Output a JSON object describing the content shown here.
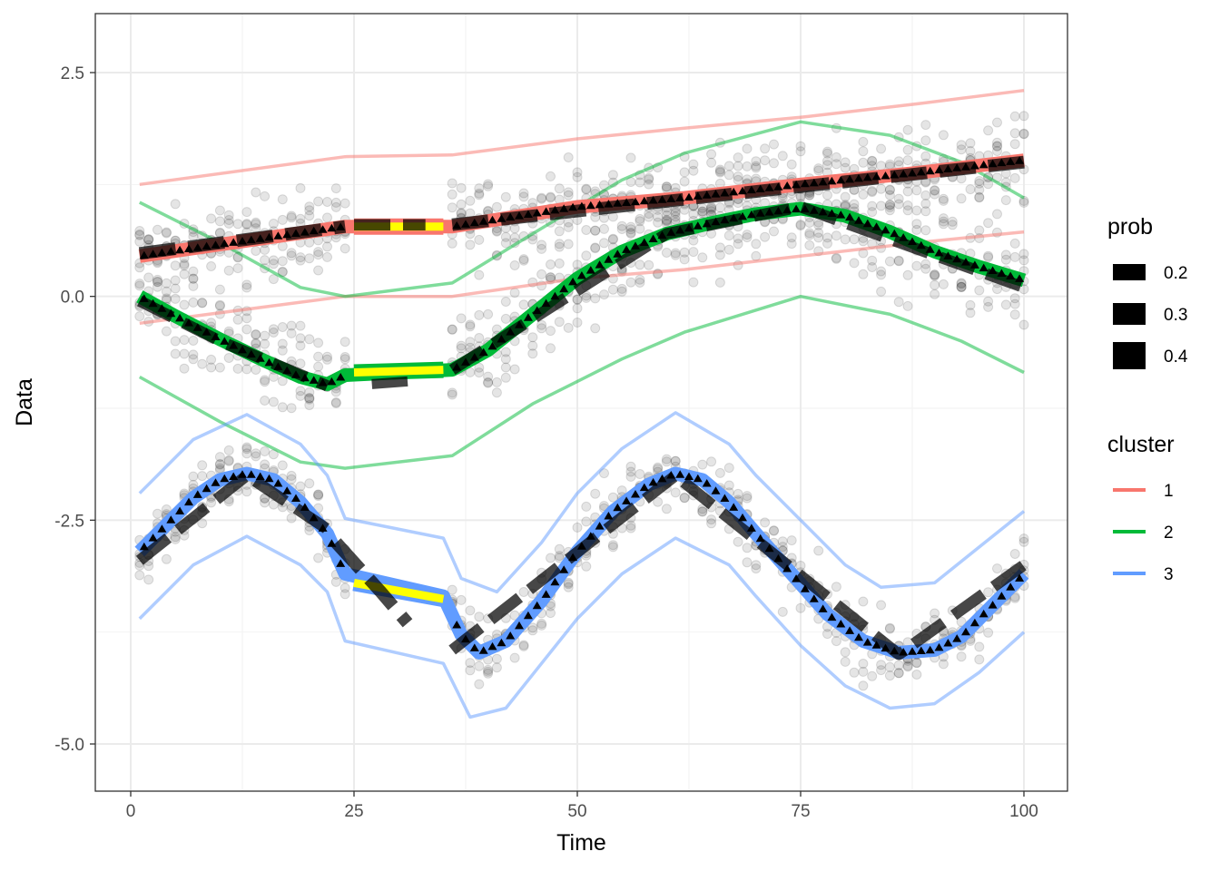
{
  "chart_data": {
    "type": "line",
    "xlabel": "Time",
    "ylabel": "Data",
    "xlim": [
      0,
      100
    ],
    "ylim": [
      -5.5,
      3.2
    ],
    "x_ticks": [
      0,
      25,
      50,
      75,
      100
    ],
    "y_ticks": [
      2.5,
      0.0,
      -2.5,
      -5.0
    ],
    "x_tick_labels": [
      "0",
      "25",
      "50",
      "75",
      "100"
    ],
    "y_tick_labels": [
      "2.5",
      "0.0",
      "-2.5",
      "-5.0"
    ],
    "grid": true,
    "legend_position": "right",
    "legend_prob": {
      "title": "prob",
      "entries": [
        {
          "label": "0.2",
          "value": 0.2
        },
        {
          "label": "0.3",
          "value": 0.3
        },
        {
          "label": "0.4",
          "value": 0.4
        }
      ]
    },
    "legend_cluster": {
      "title": "cluster",
      "entries": [
        {
          "label": "1",
          "color": "#F8766D"
        },
        {
          "label": "2",
          "color": "#00BA38"
        },
        {
          "label": "3",
          "color": "#619CFF"
        }
      ]
    },
    "series": [
      {
        "cluster": "1",
        "color": "#F8766D",
        "mean": [
          [
            1,
            0.45
          ],
          [
            24,
            0.78
          ],
          [
            36,
            0.78
          ],
          [
            50,
            1.0
          ],
          [
            62,
            1.1
          ],
          [
            75,
            1.25
          ],
          [
            88,
            1.38
          ],
          [
            100,
            1.52
          ]
        ],
        "upper": [
          [
            1,
            1.25
          ],
          [
            24,
            1.56
          ],
          [
            36,
            1.58
          ],
          [
            50,
            1.76
          ],
          [
            62,
            1.88
          ],
          [
            75,
            2.0
          ],
          [
            88,
            2.15
          ],
          [
            100,
            2.3
          ]
        ],
        "lower": [
          [
            1,
            -0.3
          ],
          [
            24,
            0.0
          ],
          [
            36,
            0.0
          ],
          [
            50,
            0.2
          ],
          [
            62,
            0.3
          ],
          [
            75,
            0.45
          ],
          [
            88,
            0.6
          ],
          [
            100,
            0.72
          ]
        ],
        "gap": [
          [
            25,
            0.78
          ],
          [
            35,
            0.78
          ]
        ]
      },
      {
        "cluster": "2",
        "color": "#00BA38",
        "mean": [
          [
            1,
            0.0
          ],
          [
            5,
            -0.22
          ],
          [
            10,
            -0.48
          ],
          [
            15,
            -0.72
          ],
          [
            19,
            -0.9
          ],
          [
            22,
            -0.98
          ],
          [
            24,
            -0.88
          ],
          [
            36,
            -0.82
          ],
          [
            40,
            -0.6
          ],
          [
            45,
            -0.2
          ],
          [
            50,
            0.2
          ],
          [
            55,
            0.5
          ],
          [
            60,
            0.7
          ],
          [
            65,
            0.82
          ],
          [
            70,
            0.92
          ],
          [
            75,
            0.98
          ],
          [
            80,
            0.9
          ],
          [
            85,
            0.72
          ],
          [
            90,
            0.5
          ],
          [
            95,
            0.33
          ],
          [
            100,
            0.18
          ]
        ],
        "upper": [
          [
            1,
            1.05
          ],
          [
            10,
            0.6
          ],
          [
            19,
            0.1
          ],
          [
            24,
            0.0
          ],
          [
            36,
            0.15
          ],
          [
            45,
            0.7
          ],
          [
            55,
            1.3
          ],
          [
            62,
            1.6
          ],
          [
            75,
            1.95
          ],
          [
            85,
            1.8
          ],
          [
            93,
            1.5
          ],
          [
            100,
            1.1
          ]
        ],
        "lower": [
          [
            1,
            -0.9
          ],
          [
            10,
            -1.4
          ],
          [
            19,
            -1.85
          ],
          [
            24,
            -1.92
          ],
          [
            36,
            -1.78
          ],
          [
            45,
            -1.2
          ],
          [
            55,
            -0.7
          ],
          [
            62,
            -0.4
          ],
          [
            75,
            0.0
          ],
          [
            85,
            -0.2
          ],
          [
            93,
            -0.5
          ],
          [
            100,
            -0.85
          ]
        ],
        "gap": [
          [
            25,
            -0.85
          ],
          [
            35,
            -0.82
          ]
        ]
      },
      {
        "cluster": "3",
        "color": "#619CFF",
        "mean": [
          [
            1,
            -2.85
          ],
          [
            4,
            -2.55
          ],
          [
            7,
            -2.25
          ],
          [
            10,
            -2.05
          ],
          [
            13,
            -1.98
          ],
          [
            16,
            -2.05
          ],
          [
            19,
            -2.3
          ],
          [
            22,
            -2.65
          ],
          [
            24,
            -3.1
          ],
          [
            35,
            -3.35
          ],
          [
            37,
            -3.78
          ],
          [
            39,
            -3.98
          ],
          [
            42,
            -3.85
          ],
          [
            46,
            -3.4
          ],
          [
            50,
            -2.85
          ],
          [
            54,
            -2.4
          ],
          [
            58,
            -2.1
          ],
          [
            61,
            -1.98
          ],
          [
            64,
            -2.05
          ],
          [
            67,
            -2.3
          ],
          [
            70,
            -2.65
          ],
          [
            74,
            -3.1
          ],
          [
            78,
            -3.55
          ],
          [
            82,
            -3.85
          ],
          [
            86,
            -3.98
          ],
          [
            90,
            -3.95
          ],
          [
            93,
            -3.8
          ],
          [
            96,
            -3.5
          ],
          [
            100,
            -3.1
          ]
        ],
        "upper": [
          [
            1,
            -2.2
          ],
          [
            7,
            -1.6
          ],
          [
            13,
            -1.32
          ],
          [
            19,
            -1.65
          ],
          [
            22,
            -2.0
          ],
          [
            24,
            -2.48
          ],
          [
            35,
            -2.7
          ],
          [
            37,
            -3.15
          ],
          [
            41,
            -3.3
          ],
          [
            46,
            -2.75
          ],
          [
            50,
            -2.2
          ],
          [
            55,
            -1.7
          ],
          [
            61,
            -1.3
          ],
          [
            67,
            -1.65
          ],
          [
            70,
            -2.0
          ],
          [
            75,
            -2.5
          ],
          [
            80,
            -3.0
          ],
          [
            84,
            -3.25
          ],
          [
            90,
            -3.2
          ],
          [
            95,
            -2.8
          ],
          [
            100,
            -2.4
          ]
        ],
        "lower": [
          [
            1,
            -3.6
          ],
          [
            7,
            -3.0
          ],
          [
            13,
            -2.68
          ],
          [
            19,
            -3.0
          ],
          [
            22,
            -3.3
          ],
          [
            24,
            -3.85
          ],
          [
            35,
            -4.1
          ],
          [
            38,
            -4.7
          ],
          [
            42,
            -4.6
          ],
          [
            46,
            -4.1
          ],
          [
            50,
            -3.6
          ],
          [
            55,
            -3.1
          ],
          [
            61,
            -2.7
          ],
          [
            67,
            -3.0
          ],
          [
            70,
            -3.35
          ],
          [
            75,
            -3.9
          ],
          [
            80,
            -4.35
          ],
          [
            85,
            -4.6
          ],
          [
            90,
            -4.55
          ],
          [
            95,
            -4.2
          ],
          [
            100,
            -3.75
          ]
        ],
        "gap": [
          [
            25,
            -3.2
          ],
          [
            35,
            -3.38
          ]
        ]
      }
    ],
    "prob_paths": [
      {
        "prob": 0.4,
        "segment": [
          [
            1,
            0.48
          ],
          [
            24,
            0.78
          ]
        ]
      },
      {
        "prob": 0.4,
        "segment": [
          [
            36,
            0.8
          ],
          [
            100,
            1.5
          ]
        ]
      },
      {
        "prob": 0.3,
        "segment": [
          [
            25,
            0.8
          ],
          [
            33,
            0.8
          ]
        ]
      },
      {
        "prob": 0.3,
        "segment": [
          [
            1,
            -0.05
          ],
          [
            10,
            -0.5
          ],
          [
            22,
            -1.0
          ]
        ]
      },
      {
        "prob": 0.2,
        "segment": [
          [
            27,
            -0.98
          ],
          [
            31,
            -0.95
          ]
        ]
      },
      {
        "prob": 0.3,
        "segment": [
          [
            36,
            -0.82
          ],
          [
            60,
            0.7
          ],
          [
            75,
            1.0
          ],
          [
            100,
            0.1
          ]
        ]
      },
      {
        "prob": 0.3,
        "segment": [
          [
            1,
            -2.95
          ],
          [
            13,
            -2.0
          ],
          [
            22,
            -2.6
          ]
        ]
      },
      {
        "prob": 0.4,
        "segment": [
          [
            23,
            -2.75
          ],
          [
            28,
            -3.3
          ],
          [
            31,
            -3.65
          ]
        ]
      },
      {
        "prob": 0.3,
        "segment": [
          [
            36,
            -3.95
          ],
          [
            61,
            -2.0
          ],
          [
            86,
            -4.0
          ],
          [
            100,
            -3.0
          ]
        ]
      }
    ],
    "scatter_clusters": [
      {
        "cluster": "1",
        "count_per_time": 6
      },
      {
        "cluster": "2",
        "count_per_time": 6
      },
      {
        "cluster": "3",
        "count_per_time": 6
      }
    ]
  }
}
